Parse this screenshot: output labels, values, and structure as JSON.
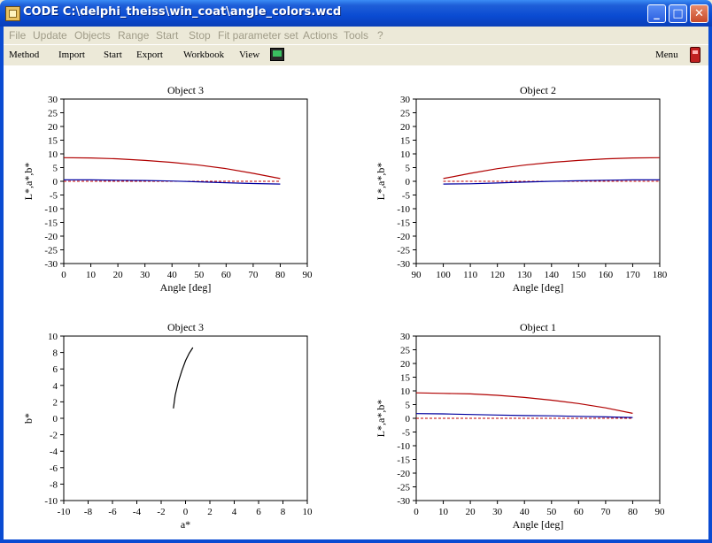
{
  "window": {
    "title": "CODE C:\\delphi_theiss\\win_coat\\angle_colors.wcd",
    "buttons": {
      "minimize": "_",
      "maximize": "□",
      "close": "✕"
    }
  },
  "menubar": {
    "items": [
      "File",
      "Update",
      "Objects",
      "Range",
      "Start",
      "Stop",
      "Fit parameter set",
      "Actions",
      "Tools",
      "?"
    ]
  },
  "toolbar": {
    "items": [
      "Method",
      "Import",
      "Start",
      "Export",
      "Workbook",
      "View"
    ],
    "menu_label": "Menu"
  },
  "chart_data": [
    {
      "type": "line",
      "title": "Object 3",
      "xlabel": "Angle [deg]",
      "ylabel": "L*,a*,b*",
      "xlim": [
        0,
        90
      ],
      "ylim": [
        -30,
        30
      ],
      "xticks": [
        "0",
        "10",
        "20",
        "30",
        "40",
        "50",
        "60",
        "70",
        "80",
        "90"
      ],
      "yticks": [
        "30",
        "25",
        "20",
        "15",
        "10",
        "5",
        "0",
        "-5",
        "-10",
        "-15",
        "-20",
        "-25",
        "-30"
      ],
      "dashed_zero_line": true,
      "series": [
        {
          "color": "#b00000",
          "x": [
            0,
            10,
            20,
            30,
            40,
            50,
            60,
            70,
            80
          ],
          "y": [
            8.6,
            8.5,
            8.2,
            7.6,
            6.9,
            5.9,
            4.6,
            2.9,
            1.0
          ]
        },
        {
          "color": "#0000a0",
          "x": [
            0,
            10,
            20,
            30,
            40,
            50,
            60,
            70,
            80
          ],
          "y": [
            0.5,
            0.5,
            0.4,
            0.3,
            0.1,
            -0.2,
            -0.5,
            -0.8,
            -1.0
          ]
        }
      ]
    },
    {
      "type": "line",
      "title": "Object 2",
      "xlabel": "Angle [deg]",
      "ylabel": "L*,a*,b*",
      "xlim": [
        90,
        180
      ],
      "ylim": [
        -30,
        30
      ],
      "xticks": [
        "90",
        "100",
        "110",
        "120",
        "130",
        "140",
        "150",
        "160",
        "170",
        "180"
      ],
      "yticks": [
        "30",
        "25",
        "20",
        "15",
        "10",
        "5",
        "0",
        "-5",
        "-10",
        "-15",
        "-20",
        "-25",
        "-30"
      ],
      "dashed_zero_line": true,
      "series": [
        {
          "color": "#b00000",
          "x": [
            100,
            110,
            120,
            130,
            140,
            150,
            160,
            170,
            180
          ],
          "y": [
            1.0,
            2.9,
            4.6,
            5.9,
            6.9,
            7.6,
            8.2,
            8.5,
            8.6
          ]
        },
        {
          "color": "#0000a0",
          "x": [
            100,
            110,
            120,
            130,
            140,
            150,
            160,
            170,
            180
          ],
          "y": [
            -1.0,
            -0.9,
            -0.6,
            -0.3,
            0.0,
            0.2,
            0.4,
            0.5,
            0.5
          ]
        }
      ]
    },
    {
      "type": "line",
      "title": "Object 3",
      "xlabel": "a*",
      "ylabel": "b*",
      "xlim": [
        -10,
        10
      ],
      "ylim": [
        -10,
        10
      ],
      "xticks": [
        "-10",
        "-8",
        "-6",
        "-4",
        "-2",
        "0",
        "2",
        "4",
        "6",
        "8",
        "10"
      ],
      "yticks": [
        "10",
        "8",
        "6",
        "4",
        "2",
        "0",
        "-2",
        "-4",
        "-6",
        "-8",
        "-10"
      ],
      "dashed_zero_line": false,
      "series": [
        {
          "color": "#000000",
          "x": [
            -1.0,
            -0.85,
            -0.6,
            -0.3,
            0.0,
            0.3,
            0.6
          ],
          "y": [
            1.2,
            2.8,
            4.4,
            5.8,
            7.0,
            7.9,
            8.6
          ]
        }
      ]
    },
    {
      "type": "line",
      "title": "Object 1",
      "xlabel": "Angle [deg]",
      "ylabel": "L*,a*,b*",
      "xlim": [
        0,
        90
      ],
      "ylim": [
        -30,
        30
      ],
      "xticks": [
        "0",
        "10",
        "20",
        "30",
        "40",
        "50",
        "60",
        "70",
        "80",
        "90"
      ],
      "yticks": [
        "30",
        "25",
        "20",
        "15",
        "10",
        "5",
        "0",
        "-5",
        "-10",
        "-15",
        "-20",
        "-25",
        "-30"
      ],
      "dashed_zero_line": true,
      "series": [
        {
          "color": "#b00000",
          "x": [
            0,
            10,
            20,
            30,
            40,
            50,
            60,
            70,
            80
          ],
          "y": [
            9.3,
            9.1,
            8.9,
            8.4,
            7.6,
            6.6,
            5.4,
            3.8,
            1.8
          ]
        },
        {
          "color": "#0000a0",
          "x": [
            0,
            10,
            20,
            30,
            40,
            50,
            60,
            70,
            80
          ],
          "y": [
            1.7,
            1.6,
            1.4,
            1.2,
            1.0,
            0.9,
            0.7,
            0.5,
            0.3
          ]
        }
      ]
    }
  ]
}
